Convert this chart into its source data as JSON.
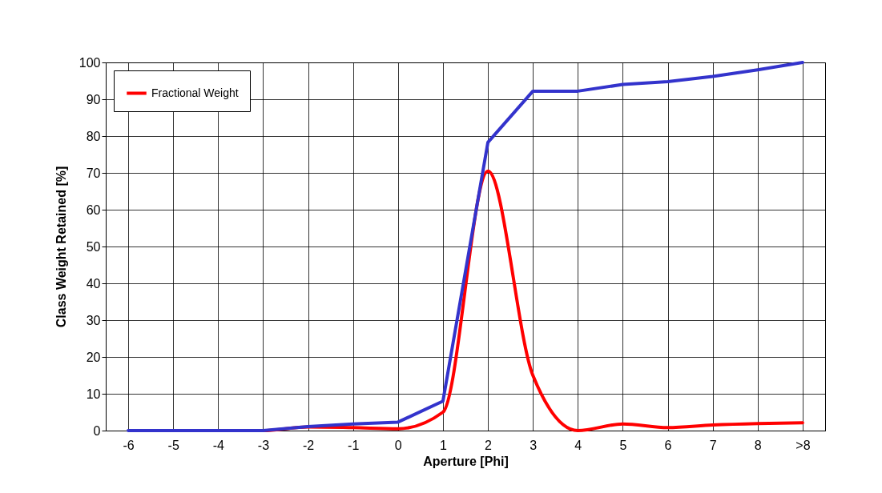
{
  "chart_data": {
    "type": "line",
    "xlabel": "Aperture [Phi]",
    "ylabel": "Class Weight Retained [%]",
    "categories": [
      "-6",
      "-5",
      "-4",
      "-3",
      "-2",
      "-1",
      "0",
      "1",
      "2",
      "3",
      "4",
      "5",
      "6",
      "7",
      "8",
      ">8"
    ],
    "series": [
      {
        "name": "Fractional Weight",
        "color": "#ff0000",
        "values": [
          null,
          null,
          0,
          0,
          1,
          0.8,
          0.5,
          5,
          70.5,
          15,
          0,
          1.8,
          0.8,
          1.5,
          1.9,
          2.1
        ]
      },
      {
        "color": "#3333cc",
        "values": [
          0,
          0,
          0,
          0,
          1.1,
          1.8,
          2.3,
          8,
          78.3,
          92.2,
          92.2,
          94,
          94.8,
          96.2,
          98,
          100
        ]
      }
    ],
    "ylim": [
      0,
      100
    ],
    "yticks": [
      0,
      10,
      20,
      30,
      40,
      50,
      60,
      70,
      80,
      90,
      100
    ],
    "grid": true,
    "legend": "top left",
    "marker": "none",
    "line_style": "solid"
  }
}
